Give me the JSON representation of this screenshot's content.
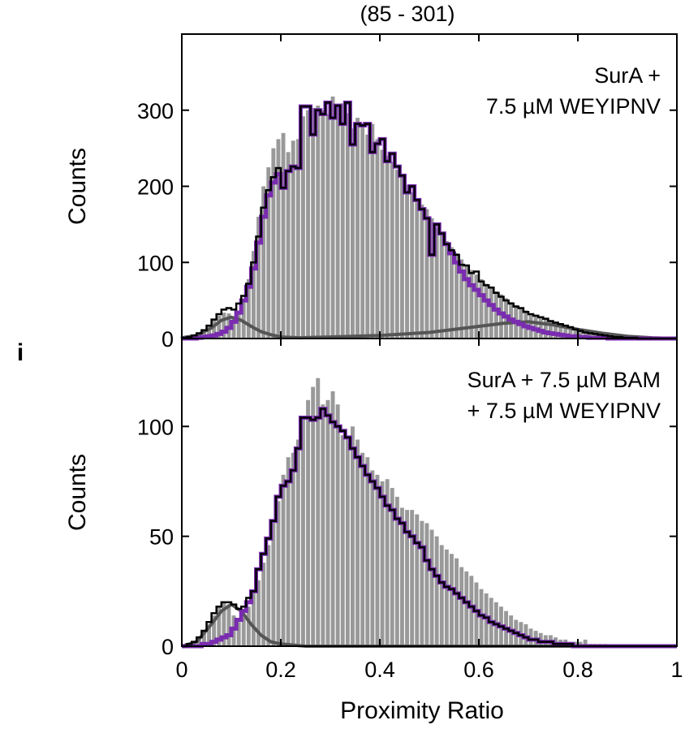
{
  "figure": {
    "top_title": "(85 - 301)",
    "panel_letter": "i",
    "xlabel": "Proximity Ratio",
    "colors": {
      "hist": "#999999",
      "fit_total": "#000000",
      "fit_main": "#7a2cb0",
      "fit_minor": "#555555"
    }
  },
  "chart_data": [
    {
      "type": "bar",
      "panel": "top",
      "annotation": [
        "SurA +",
        "7.5 µM WEYIPNV"
      ],
      "ylabel": "Counts",
      "xlim": [
        0,
        1
      ],
      "ylim": [
        0,
        400
      ],
      "xticks": [
        "0",
        "0.2",
        "0.4",
        "0.6",
        "0.8",
        "1"
      ],
      "yticks": [
        0,
        100,
        200,
        300
      ],
      "x": [
        0.005,
        0.015,
        0.025,
        0.035,
        0.045,
        0.055,
        0.065,
        0.075,
        0.085,
        0.095,
        0.105,
        0.115,
        0.125,
        0.135,
        0.145,
        0.155,
        0.165,
        0.175,
        0.185,
        0.195,
        0.205,
        0.215,
        0.225,
        0.235,
        0.245,
        0.255,
        0.265,
        0.275,
        0.285,
        0.295,
        0.305,
        0.315,
        0.325,
        0.335,
        0.345,
        0.355,
        0.365,
        0.375,
        0.385,
        0.395,
        0.405,
        0.415,
        0.425,
        0.435,
        0.445,
        0.455,
        0.465,
        0.475,
        0.485,
        0.495,
        0.505,
        0.515,
        0.525,
        0.535,
        0.545,
        0.555,
        0.565,
        0.575,
        0.585,
        0.595,
        0.605,
        0.615,
        0.625,
        0.635,
        0.645,
        0.655,
        0.665,
        0.675,
        0.685,
        0.695,
        0.705,
        0.715,
        0.725,
        0.735,
        0.745,
        0.755,
        0.765,
        0.775,
        0.785,
        0.795,
        0.805,
        0.815,
        0.825,
        0.835,
        0.845,
        0.855,
        0.865,
        0.875,
        0.885,
        0.895,
        0.905,
        0.915,
        0.925,
        0.935,
        0.945,
        0.955,
        0.965,
        0.975,
        0.985,
        0.995
      ],
      "values": [
        1,
        2,
        3,
        6,
        10,
        16,
        24,
        30,
        34,
        33,
        28,
        32,
        48,
        78,
        115,
        160,
        200,
        225,
        250,
        262,
        270,
        245,
        260,
        262,
        292,
        300,
        303,
        306,
        300,
        295,
        318,
        304,
        309,
        296,
        276,
        290,
        282,
        268,
        282,
        262,
        248,
        240,
        232,
        222,
        212,
        202,
        192,
        182,
        176,
        170,
        158,
        146,
        136,
        128,
        120,
        112,
        104,
        97,
        90,
        84,
        78,
        72,
        67,
        62,
        58,
        53,
        48,
        44,
        40,
        37,
        33,
        30,
        27,
        25,
        22,
        20,
        18,
        16,
        14,
        12,
        10,
        9,
        8,
        7,
        6,
        5,
        4,
        3,
        3,
        2,
        2,
        2,
        1,
        1,
        1,
        1,
        0,
        0,
        0,
        0
      ],
      "fit_total": [
        1,
        2,
        4,
        7,
        11,
        17,
        25,
        32,
        38,
        40,
        38,
        46,
        56,
        72,
        100,
        134,
        172,
        195,
        212,
        224,
        198,
        220,
        226,
        224,
        305,
        305,
        268,
        300,
        295,
        310,
        290,
        306,
        282,
        310,
        255,
        282,
        280,
        282,
        245,
        256,
        262,
        233,
        243,
        226,
        214,
        192,
        200,
        182,
        170,
        158,
        110,
        150,
        138,
        124,
        116,
        110,
        97,
        96,
        86,
        88,
        75,
        70,
        67,
        60,
        55,
        50,
        46,
        42,
        40,
        35,
        32,
        30,
        28,
        26,
        23,
        21,
        19,
        17,
        15,
        12,
        10,
        8,
        7,
        6,
        5,
        4,
        3,
        2,
        2,
        1,
        1,
        1,
        0,
        0,
        0,
        0,
        0,
        0,
        0,
        0
      ],
      "fit_main": [
        0,
        0,
        0,
        1,
        2,
        3,
        4,
        6,
        9,
        14,
        22,
        34,
        50,
        68,
        92,
        126,
        160,
        188,
        205,
        216,
        198,
        220,
        226,
        224,
        305,
        305,
        268,
        300,
        295,
        310,
        290,
        306,
        282,
        310,
        255,
        282,
        280,
        282,
        245,
        256,
        262,
        233,
        243,
        226,
        214,
        192,
        200,
        182,
        170,
        158,
        110,
        150,
        138,
        124,
        112,
        100,
        88,
        78,
        70,
        64,
        57,
        50,
        44,
        38,
        33,
        29,
        25,
        22,
        19,
        16,
        14,
        12,
        10,
        8,
        7,
        6,
        5,
        4,
        3,
        3,
        2,
        2,
        1,
        1,
        1,
        1,
        0,
        0,
        0,
        0,
        0,
        0,
        0,
        0,
        0,
        0,
        0,
        0,
        0,
        0
      ],
      "fit_minor": [
        [
          0.0,
          1
        ],
        [
          0.03,
          4
        ],
        [
          0.06,
          14
        ],
        [
          0.08,
          24
        ],
        [
          0.1,
          28
        ],
        [
          0.12,
          24
        ],
        [
          0.14,
          16
        ],
        [
          0.16,
          9
        ],
        [
          0.18,
          5
        ],
        [
          0.2,
          2
        ],
        [
          0.24,
          1
        ],
        [
          0.3,
          2
        ],
        [
          0.4,
          4
        ],
        [
          0.5,
          8
        ],
        [
          0.55,
          12
        ],
        [
          0.6,
          16
        ],
        [
          0.65,
          20
        ],
        [
          0.7,
          22
        ],
        [
          0.75,
          18
        ],
        [
          0.8,
          12
        ],
        [
          0.85,
          7
        ],
        [
          0.9,
          3
        ],
        [
          0.95,
          1
        ],
        [
          1.0,
          0
        ]
      ]
    },
    {
      "type": "bar",
      "panel": "bottom",
      "annotation": [
        "SurA + 7.5 µM BAM",
        "+ 7.5 µM WEYIPNV"
      ],
      "ylabel": "Counts",
      "xlim": [
        0,
        1
      ],
      "ylim": [
        0,
        140
      ],
      "xticks": [
        "0",
        "0.2",
        "0.4",
        "0.6",
        "0.8",
        "1"
      ],
      "yticks": [
        0,
        50,
        100
      ],
      "x": [
        0.005,
        0.015,
        0.025,
        0.035,
        0.045,
        0.055,
        0.065,
        0.075,
        0.085,
        0.095,
        0.105,
        0.115,
        0.125,
        0.135,
        0.145,
        0.155,
        0.165,
        0.175,
        0.185,
        0.195,
        0.205,
        0.215,
        0.225,
        0.235,
        0.245,
        0.255,
        0.265,
        0.275,
        0.285,
        0.295,
        0.305,
        0.315,
        0.325,
        0.335,
        0.345,
        0.355,
        0.365,
        0.375,
        0.385,
        0.395,
        0.405,
        0.415,
        0.425,
        0.435,
        0.445,
        0.455,
        0.465,
        0.475,
        0.485,
        0.495,
        0.505,
        0.515,
        0.525,
        0.535,
        0.545,
        0.555,
        0.565,
        0.575,
        0.585,
        0.595,
        0.605,
        0.615,
        0.625,
        0.635,
        0.645,
        0.655,
        0.665,
        0.675,
        0.685,
        0.695,
        0.705,
        0.715,
        0.725,
        0.735,
        0.745,
        0.755,
        0.765,
        0.775,
        0.785,
        0.795,
        0.805,
        0.815,
        0.825,
        0.835,
        0.845,
        0.855,
        0.865,
        0.875,
        0.885,
        0.895,
        0.905,
        0.915,
        0.925,
        0.935,
        0.945,
        0.955,
        0.965,
        0.975,
        0.985,
        0.995
      ],
      "values": [
        0,
        1,
        2,
        4,
        7,
        10,
        14,
        18,
        20,
        19,
        14,
        11,
        13,
        18,
        24,
        30,
        38,
        46,
        56,
        66,
        78,
        86,
        88,
        94,
        104,
        112,
        118,
        122,
        110,
        112,
        116,
        110,
        96,
        95,
        100,
        94,
        88,
        86,
        80,
        78,
        75,
        76,
        72,
        68,
        63,
        62,
        62,
        60,
        57,
        56,
        53,
        50,
        46,
        44,
        42,
        40,
        36,
        34,
        32,
        29,
        26,
        24,
        22,
        20,
        18,
        16,
        14,
        12,
        11,
        10,
        8,
        7,
        6,
        5,
        5,
        4,
        3,
        3,
        2,
        2,
        2,
        3,
        1,
        1,
        1,
        1,
        0,
        0,
        0,
        0,
        0,
        0,
        0,
        0,
        0,
        0,
        0,
        0,
        0,
        0
      ],
      "fit_total": [
        0,
        1,
        2,
        4,
        7,
        11,
        15,
        18,
        20,
        20,
        19,
        17,
        18,
        22,
        25,
        35,
        42,
        49,
        57,
        68,
        73,
        75,
        80,
        90,
        104,
        104,
        103,
        104,
        108,
        105,
        102,
        100,
        98,
        95,
        90,
        86,
        82,
        78,
        75,
        72,
        68,
        64,
        62,
        58,
        56,
        52,
        50,
        47,
        45,
        39,
        35,
        32,
        29,
        27,
        26,
        24,
        22,
        20,
        18,
        16,
        14,
        13,
        11,
        10,
        9,
        8,
        7,
        6,
        5,
        4,
        3,
        3,
        2,
        2,
        2,
        1,
        1,
        1,
        1,
        0,
        0,
        0,
        0,
        0,
        0,
        0,
        0,
        0,
        0,
        0,
        0,
        0,
        0,
        0,
        0,
        0,
        0,
        0,
        0,
        0
      ],
      "fit_main": [
        0,
        0,
        0,
        0,
        1,
        1,
        2,
        3,
        4,
        5,
        8,
        12,
        16,
        20,
        25,
        35,
        42,
        49,
        57,
        68,
        73,
        75,
        80,
        90,
        104,
        104,
        103,
        104,
        108,
        105,
        102,
        100,
        98,
        95,
        90,
        86,
        82,
        78,
        75,
        72,
        68,
        64,
        62,
        58,
        56,
        52,
        50,
        47,
        45,
        39,
        35,
        32,
        29,
        27,
        26,
        24,
        22,
        20,
        18,
        16,
        14,
        13,
        11,
        10,
        9,
        8,
        7,
        6,
        5,
        4,
        3,
        3,
        2,
        2,
        2,
        1,
        1,
        1,
        1,
        0,
        0,
        0,
        0,
        0,
        0,
        0,
        0,
        0,
        0,
        0,
        0,
        0,
        0,
        0,
        0,
        0,
        0,
        0,
        0,
        0
      ],
      "fit_minor": [
        [
          0.0,
          0
        ],
        [
          0.03,
          2
        ],
        [
          0.06,
          10
        ],
        [
          0.08,
          16
        ],
        [
          0.1,
          19
        ],
        [
          0.12,
          16
        ],
        [
          0.14,
          10
        ],
        [
          0.16,
          5
        ],
        [
          0.18,
          2
        ],
        [
          0.2,
          1
        ],
        [
          0.25,
          0
        ],
        [
          1.0,
          0
        ]
      ]
    }
  ]
}
